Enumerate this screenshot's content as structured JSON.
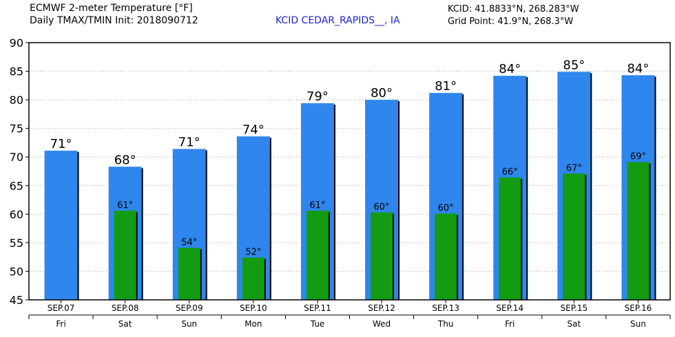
{
  "header": {
    "title_line1": "ECMWF 2-meter Temperature [°F]",
    "title_line2": "Daily TMAX/TMIN Init: 2018090712",
    "station": "KCID CEDAR_RAPIDS__, IA",
    "coord_line1": "KCID: 41.8833°N, 268.283°W",
    "coord_line2": "Grid Point: 41.9°N, 268.3°W"
  },
  "chart_data": {
    "type": "bar",
    "ylim": [
      45,
      90
    ],
    "yticks": [
      45,
      50,
      55,
      60,
      65,
      70,
      75,
      80,
      85,
      90
    ],
    "grid": true,
    "categories": [
      "SEP.07",
      "SEP.08",
      "SEP.09",
      "SEP.10",
      "SEP.11",
      "SEP.12",
      "SEP.13",
      "SEP.14",
      "SEP.15",
      "SEP.16"
    ],
    "days": [
      "Fri",
      "Sat",
      "Sun",
      "Mon",
      "Tue",
      "Wed",
      "Thu",
      "Fri",
      "Sat",
      "Sun"
    ],
    "series": [
      {
        "color": "#2f86ec",
        "values": [
          71.1,
          68.3,
          71.4,
          73.6,
          79.4,
          80.0,
          81.2,
          84.2,
          84.9,
          84.3
        ],
        "labels": [
          "71°",
          "68°",
          "71°",
          "74°",
          "79°",
          "80°",
          "81°",
          "84°",
          "85°",
          "84°"
        ]
      },
      {
        "color": "#139c12",
        "values": [
          null,
          60.6,
          54.1,
          52.4,
          60.6,
          60.3,
          60.1,
          66.4,
          67.1,
          69.1
        ],
        "labels": [
          null,
          "61°",
          "54°",
          "52°",
          "61°",
          "60°",
          "60°",
          "66°",
          "67°",
          "69°"
        ]
      }
    ]
  }
}
